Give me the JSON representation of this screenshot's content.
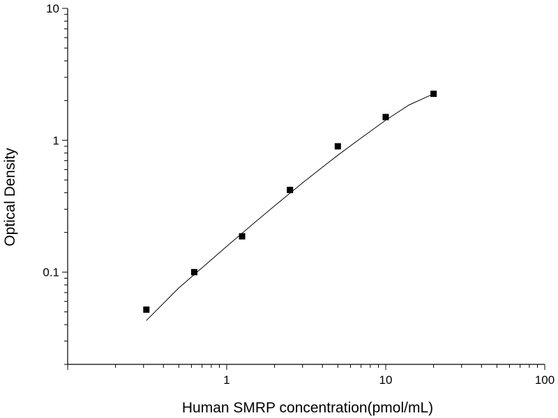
{
  "chart_data": {
    "type": "scatter",
    "title": "",
    "xlabel": "Human SMRP concentration(pmol/mL)",
    "ylabel": "Optical Density",
    "x_scale": "log",
    "y_scale": "log",
    "xlim": [
      0.1,
      100
    ],
    "ylim": [
      0.02,
      10
    ],
    "x_tick_labels": [
      {
        "value": 1,
        "label": "1"
      },
      {
        "value": 10,
        "label": "10"
      },
      {
        "value": 100,
        "label": "100"
      }
    ],
    "y_tick_labels": [
      {
        "value": 0.1,
        "label": "0.1"
      },
      {
        "value": 1,
        "label": "1"
      },
      {
        "value": 10,
        "label": "10"
      }
    ],
    "grid": false,
    "legend": "none",
    "series": [
      {
        "marker": "square",
        "color": "#000000",
        "x": [
          0.3125,
          0.625,
          1.25,
          2.5,
          5,
          10,
          20
        ],
        "y": [
          0.052,
          0.1,
          0.187,
          0.42,
          0.9,
          1.5,
          2.25
        ]
      }
    ],
    "fit_curve": {
      "color": "#000000",
      "x": [
        0.3125,
        0.5,
        0.75,
        1,
        1.5,
        2,
        3,
        4,
        5,
        7,
        10,
        14,
        20
      ],
      "y": [
        0.043,
        0.076,
        0.116,
        0.157,
        0.238,
        0.318,
        0.475,
        0.625,
        0.77,
        1.04,
        1.42,
        1.85,
        2.25
      ]
    }
  }
}
